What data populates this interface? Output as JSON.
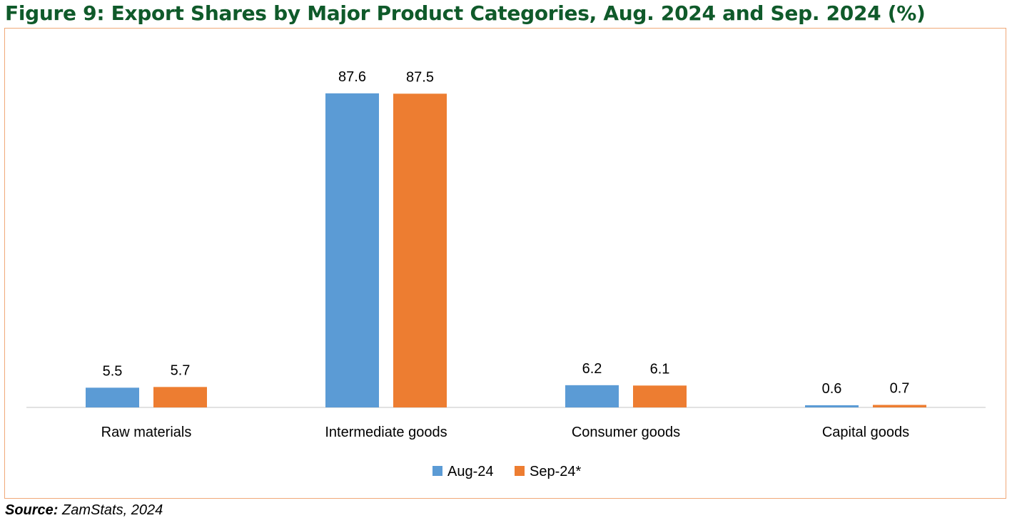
{
  "figure": {
    "title": "Figure 9: Export Shares by Major Product Categories, Aug. 2024 and Sep. 2024 (%)",
    "source_label": "Source:",
    "source_text": "ZamStats, 2024"
  },
  "chart_data": {
    "type": "bar",
    "categories": [
      "Raw materials",
      "Intermediate goods",
      "Consumer goods",
      "Capital goods"
    ],
    "series": [
      {
        "name": "Aug-24",
        "values": [
          5.5,
          87.6,
          6.2,
          0.6
        ],
        "color": "#5b9bd5"
      },
      {
        "name": "Sep-24*",
        "values": [
          5.7,
          87.5,
          6.1,
          0.7
        ],
        "color": "#ed7d31"
      }
    ],
    "ylim": [
      0,
      100
    ],
    "grid": false,
    "legend": "bottom-center",
    "data_labels": true
  }
}
